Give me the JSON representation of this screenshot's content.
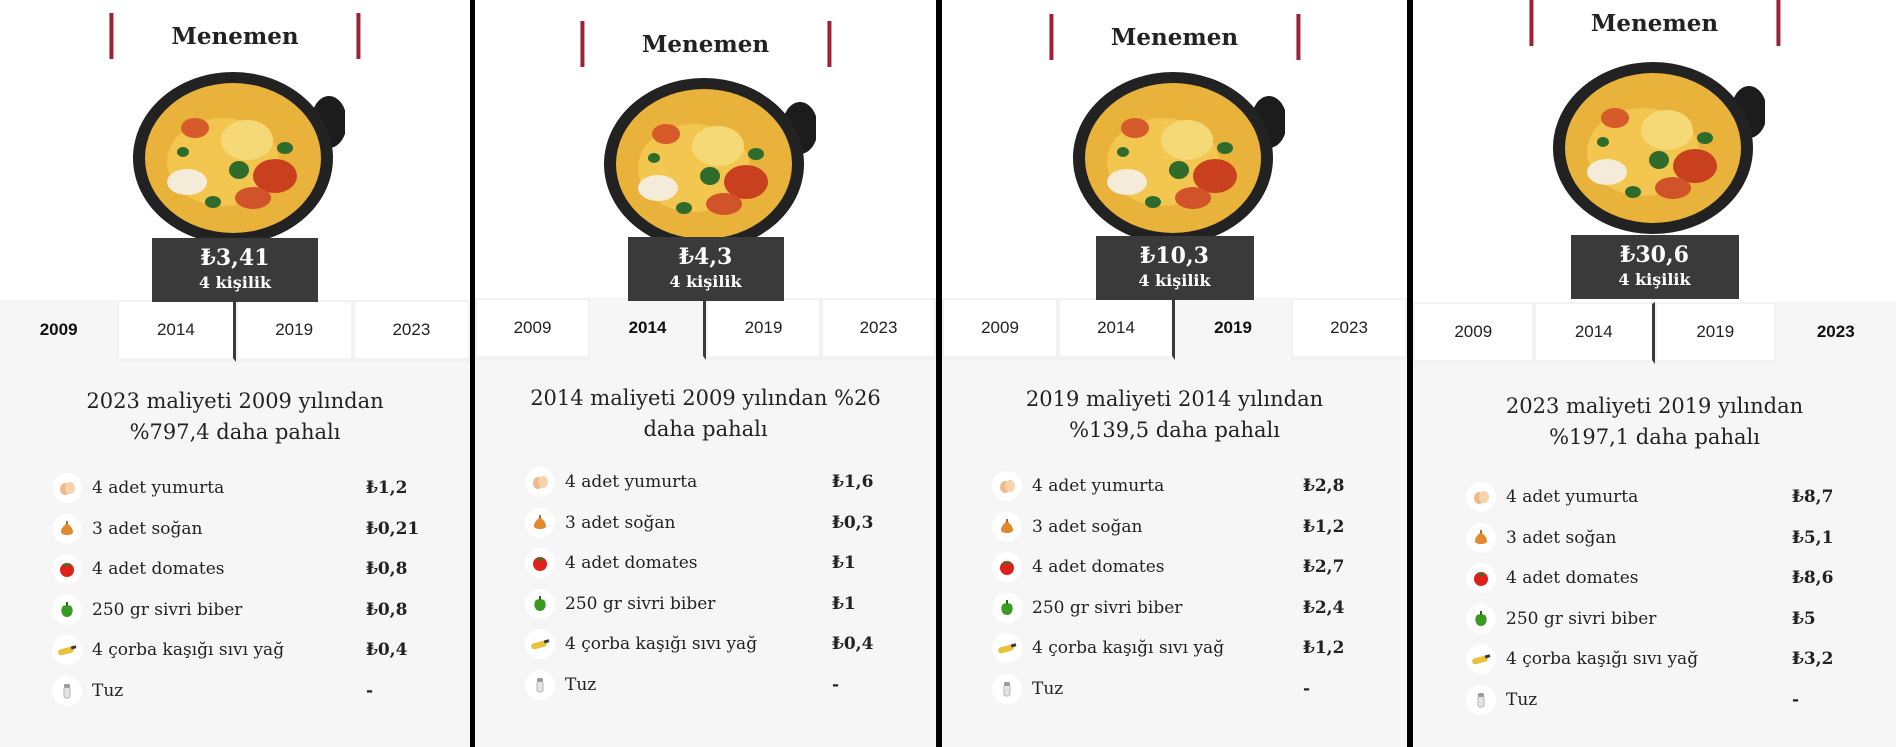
{
  "panels": [
    {
      "title": "Menemen",
      "price": "₺3,41",
      "servings": "4 kişilik",
      "tabs": [
        "2009",
        "2014",
        "2019",
        "2023"
      ],
      "active_tab": 0,
      "summary_line1": "2023 maliyeti 2009 yılından",
      "summary_line2": "%797,4 daha pahalı",
      "ingredients": [
        {
          "name": "4 adet yumurta",
          "price": "₺1,2",
          "icon": "egg-icon"
        },
        {
          "name": "3 adet soğan",
          "price": "₺0,21",
          "icon": "onion-icon"
        },
        {
          "name": "4 adet domates",
          "price": "₺0,8",
          "icon": "tomato-icon"
        },
        {
          "name": "250 gr sivri biber",
          "price": "₺0,8",
          "icon": "pepper-icon"
        },
        {
          "name": "4 çorba kaşığı sıvı yağ",
          "price": "₺0,4",
          "icon": "oil-icon"
        },
        {
          "name": "Tuz",
          "price": "-",
          "icon": "salt-icon"
        }
      ]
    },
    {
      "title": "Menemen",
      "price": "₺4,3",
      "servings": "4 kişilik",
      "tabs": [
        "2009",
        "2014",
        "2019",
        "2023"
      ],
      "active_tab": 1,
      "summary_line1": "2014 maliyeti 2009 yılından %26",
      "summary_line2": "daha pahalı",
      "ingredients": [
        {
          "name": "4 adet yumurta",
          "price": "₺1,6",
          "icon": "egg-icon"
        },
        {
          "name": "3 adet soğan",
          "price": "₺0,3",
          "icon": "onion-icon"
        },
        {
          "name": "4 adet domates",
          "price": "₺1",
          "icon": "tomato-icon"
        },
        {
          "name": "250 gr sivri biber",
          "price": "₺1",
          "icon": "pepper-icon"
        },
        {
          "name": "4 çorba kaşığı sıvı yağ",
          "price": "₺0,4",
          "icon": "oil-icon"
        },
        {
          "name": "Tuz",
          "price": "-",
          "icon": "salt-icon"
        }
      ]
    },
    {
      "title": "Menemen",
      "price": "₺10,3",
      "servings": "4 kişilik",
      "tabs": [
        "2009",
        "2014",
        "2019",
        "2023"
      ],
      "active_tab": 2,
      "summary_line1": "2019 maliyeti 2014 yılından",
      "summary_line2": "%139,5 daha pahalı",
      "ingredients": [
        {
          "name": "4 adet yumurta",
          "price": "₺2,8",
          "icon": "egg-icon"
        },
        {
          "name": "3 adet soğan",
          "price": "₺1,2",
          "icon": "onion-icon"
        },
        {
          "name": "4 adet domates",
          "price": "₺2,7",
          "icon": "tomato-icon"
        },
        {
          "name": "250 gr sivri biber",
          "price": "₺2,4",
          "icon": "pepper-icon"
        },
        {
          "name": "4 çorba kaşığı sıvı yağ",
          "price": "₺1,2",
          "icon": "oil-icon"
        },
        {
          "name": "Tuz",
          "price": "-",
          "icon": "salt-icon"
        }
      ]
    },
    {
      "title": "Menemen",
      "price": "₺30,6",
      "servings": "4 kişilik",
      "tabs": [
        "2009",
        "2014",
        "2019",
        "2023"
      ],
      "active_tab": 3,
      "summary_line1": "2023 maliyeti 2019 yılından",
      "summary_line2": "%197,1 daha pahalı",
      "ingredients": [
        {
          "name": "4 adet yumurta",
          "price": "₺8,7",
          "icon": "egg-icon"
        },
        {
          "name": "3 adet soğan",
          "price": "₺5,1",
          "icon": "onion-icon"
        },
        {
          "name": "4 adet domates",
          "price": "₺8,6",
          "icon": "tomato-icon"
        },
        {
          "name": "250 gr sivri biber",
          "price": "₺5",
          "icon": "pepper-icon"
        },
        {
          "name": "4 çorba kaşığı sıvı yağ",
          "price": "₺3,2",
          "icon": "oil-icon"
        },
        {
          "name": "Tuz",
          "price": "-",
          "icon": "salt-icon"
        }
      ]
    }
  ],
  "colors": {
    "accent": "#9b2335",
    "price_box": "#3a3a3a",
    "panel_bg": "#f6f6f6",
    "divider": "#000000"
  }
}
